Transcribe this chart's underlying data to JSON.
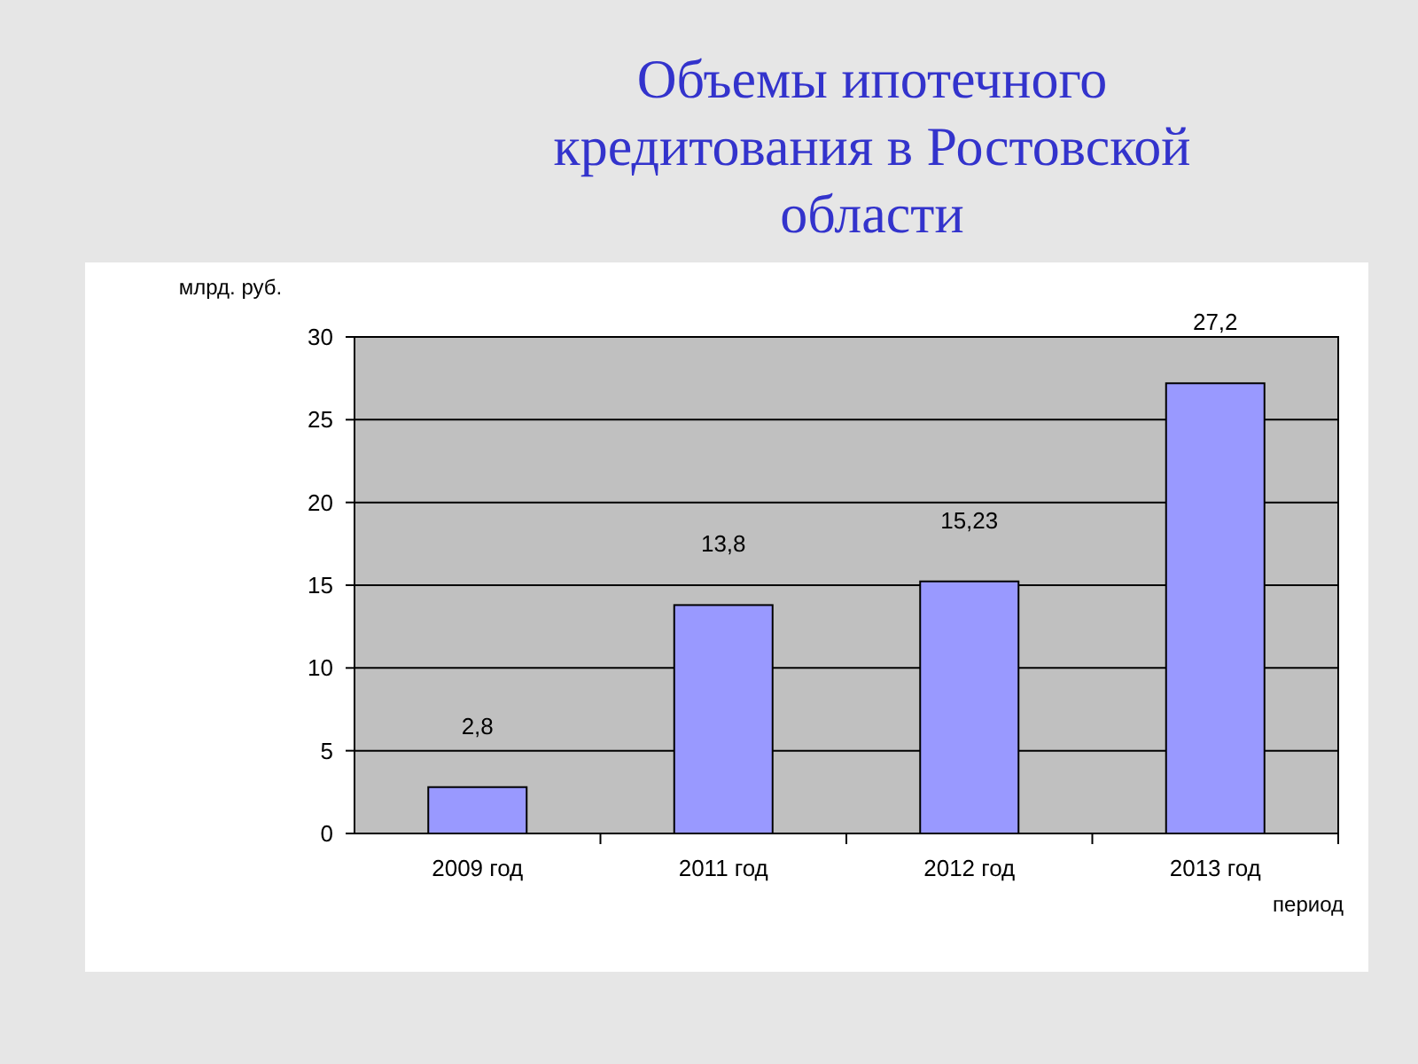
{
  "chart_data": {
    "type": "bar",
    "title": "Объемы ипотечного кредитования в Ростовской области",
    "ylabel": "млрд. руб.",
    "xlabel": "период",
    "categories": [
      "2009 год",
      "2011 год",
      "2012 год",
      "2013 год"
    ],
    "values": [
      2.8,
      13.8,
      15.23,
      27.2
    ],
    "value_labels": [
      "2,8",
      "13,8",
      "15,23",
      "27,2"
    ],
    "color": "#9999ff",
    "ylim": [
      0,
      30
    ],
    "yticks": [
      0,
      5,
      10,
      15,
      20,
      25,
      30
    ],
    "grid": "y"
  }
}
